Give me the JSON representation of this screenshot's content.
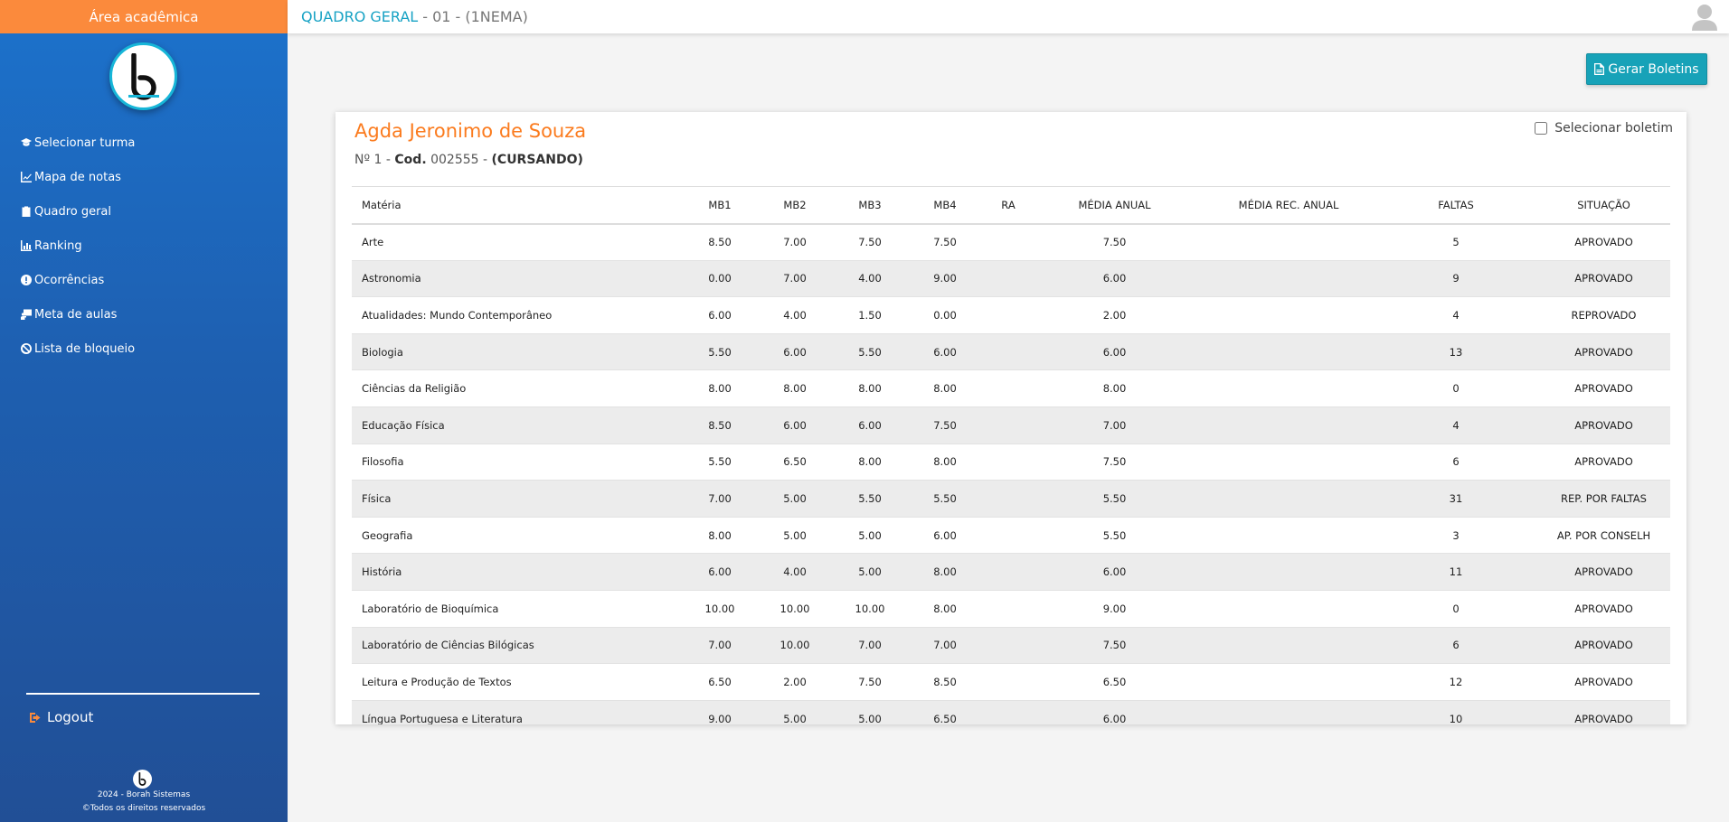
{
  "sidebar": {
    "top_label": "Área acadêmica",
    "nav": [
      {
        "label": "Selecionar turma",
        "icon": "graduation-cap-icon"
      },
      {
        "label": "Mapa de notas",
        "icon": "line-chart-icon"
      },
      {
        "label": "Quadro geral",
        "icon": "clipboard-icon"
      },
      {
        "label": "Ranking",
        "icon": "bar-chart-icon"
      },
      {
        "label": "Ocorrências",
        "icon": "alert-circle-icon"
      },
      {
        "label": "Meta de aulas",
        "icon": "teacher-board-icon"
      },
      {
        "label": "Lista de bloqueio",
        "icon": "ban-icon"
      }
    ],
    "logout_label": "Logout",
    "footer_year": "2024 - Borah Sistemas",
    "footer_rights": "©Todos os direitos reservados"
  },
  "header": {
    "title": "QUADRO GERAL",
    "subtitle": "- 01 - (1NEMA)"
  },
  "actions": {
    "generate_label": "Gerar Boletins"
  },
  "student": {
    "name": "Agda Jeronimo de Souza",
    "number_label": "Nº 1",
    "code_label": "Cod.",
    "code": "002555",
    "status": "(CURSANDO)",
    "select_label": "Selecionar boletim"
  },
  "table": {
    "headers": [
      "Matéria",
      "MB1",
      "MB2",
      "MB3",
      "MB4",
      "RA",
      "MÉDIA ANUAL",
      "MÉDIA REC. ANUAL",
      "FALTAS",
      "SITUAÇÃO"
    ],
    "rows": [
      [
        "Arte",
        "8.50",
        "7.00",
        "7.50",
        "7.50",
        "",
        "7.50",
        "",
        "5",
        "APROVADO"
      ],
      [
        "Astronomia",
        "0.00",
        "7.00",
        "4.00",
        "9.00",
        "",
        "6.00",
        "",
        "9",
        "APROVADO"
      ],
      [
        "Atualidades: Mundo Contemporâneo",
        "6.00",
        "4.00",
        "1.50",
        "0.00",
        "",
        "2.00",
        "",
        "4",
        "REPROVADO"
      ],
      [
        "Biologia",
        "5.50",
        "6.00",
        "5.50",
        "6.00",
        "",
        "6.00",
        "",
        "13",
        "APROVADO"
      ],
      [
        "Ciências da Religião",
        "8.00",
        "8.00",
        "8.00",
        "8.00",
        "",
        "8.00",
        "",
        "0",
        "APROVADO"
      ],
      [
        "Educação Física",
        "8.50",
        "6.00",
        "6.00",
        "7.50",
        "",
        "7.00",
        "",
        "4",
        "APROVADO"
      ],
      [
        "Filosofia",
        "5.50",
        "6.50",
        "8.00",
        "8.00",
        "",
        "7.50",
        "",
        "6",
        "APROVADO"
      ],
      [
        "Física",
        "7.00",
        "5.00",
        "5.50",
        "5.50",
        "",
        "5.50",
        "",
        "31",
        "REP. POR FALTAS"
      ],
      [
        "Geografia",
        "8.00",
        "5.00",
        "5.00",
        "6.00",
        "",
        "5.50",
        "",
        "3",
        "AP. POR CONSELH"
      ],
      [
        "História",
        "6.00",
        "4.00",
        "5.00",
        "8.00",
        "",
        "6.00",
        "",
        "11",
        "APROVADO"
      ],
      [
        "Laboratório de Bioquímica",
        "10.00",
        "10.00",
        "10.00",
        "8.00",
        "",
        "9.00",
        "",
        "0",
        "APROVADO"
      ],
      [
        "Laboratório de Ciências Bilógicas",
        "7.00",
        "10.00",
        "7.00",
        "7.00",
        "",
        "7.50",
        "",
        "6",
        "APROVADO"
      ],
      [
        "Leitura e Produção de Textos",
        "6.50",
        "2.00",
        "7.50",
        "8.50",
        "",
        "6.50",
        "",
        "12",
        "APROVADO"
      ],
      [
        "Língua Portuguesa e Literatura",
        "9.00",
        "5.00",
        "5.00",
        "6.50",
        "",
        "6.00",
        "",
        "10",
        "APROVADO"
      ]
    ]
  },
  "colors": {
    "accent_orange": "#fb8a3c",
    "teal": "#17a2b8",
    "sidebar_blue": "#1e5fb0"
  }
}
